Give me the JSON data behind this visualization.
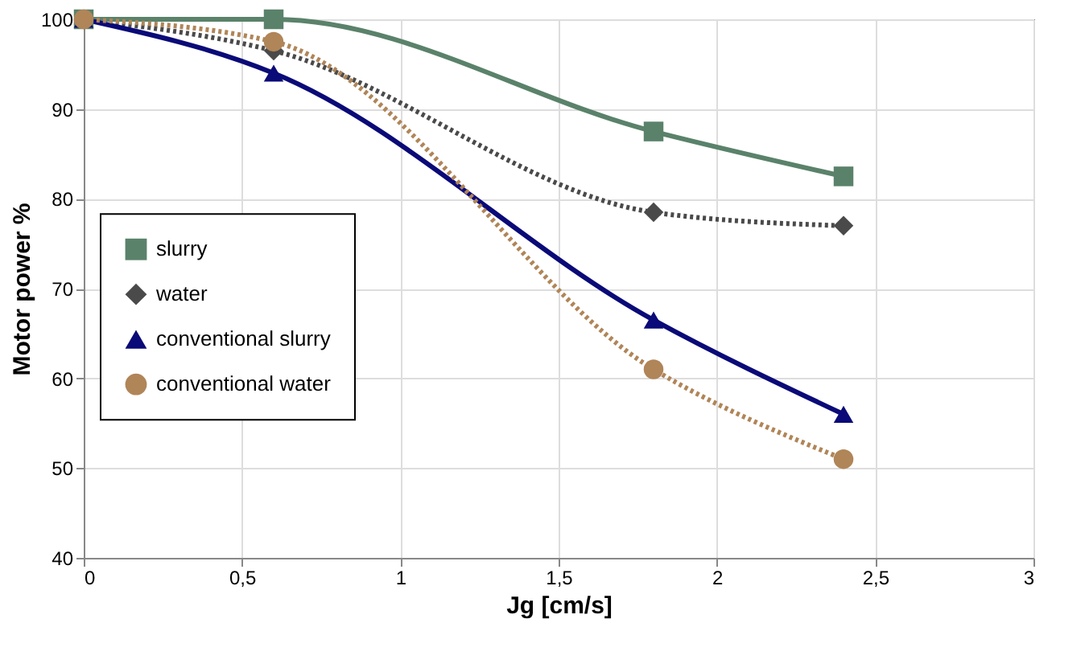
{
  "chart_data": {
    "type": "line",
    "xlabel": "Jg [cm/s]",
    "ylabel": "Motor power %",
    "xlim": [
      0,
      3
    ],
    "xticks": [
      0,
      {
        "value": 0.5,
        "label": "0,5"
      },
      1,
      {
        "value": 1.5,
        "label": "1,5"
      },
      2,
      {
        "value": 2.5,
        "label": "2,5"
      },
      3
    ],
    "ylim": [
      40,
      100
    ],
    "yticks": [
      40,
      50,
      60,
      70,
      80,
      90,
      100
    ],
    "grid": true,
    "legend": "left",
    "x": [
      0,
      0.6,
      1.8,
      2.4
    ],
    "series": [
      {
        "name": "slurry",
        "color": "#5a826a",
        "marker": "square",
        "line_style": "solid",
        "values": [
          100,
          100,
          87.5,
          82.5
        ]
      },
      {
        "name": "water",
        "color": "#4a4a4a",
        "marker": "diamond",
        "line_style": "dotted",
        "values": [
          100,
          96.5,
          78.5,
          77
        ]
      },
      {
        "name": "conventional slurry",
        "color": "#0a0a78",
        "marker": "triangle",
        "line_style": "solid",
        "values": [
          100,
          94,
          66.5,
          56
        ]
      },
      {
        "name": "conventional water",
        "color": "#b08558",
        "marker": "circle",
        "line_style": "dotted",
        "values": [
          100,
          97.5,
          61,
          51
        ]
      }
    ]
  }
}
